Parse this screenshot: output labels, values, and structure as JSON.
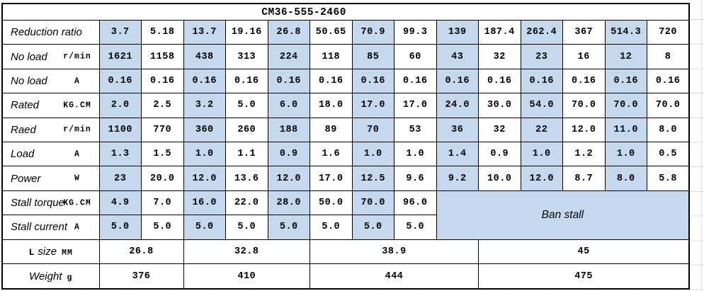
{
  "title": "CM36-555-2460",
  "colors": {
    "cell_blue": "#c5d8ed",
    "gridline": "#dadde1",
    "border": "#000000"
  },
  "table": {
    "rows": [
      {
        "key": "reduction-ratio",
        "label": "Reduction ratio",
        "unit": "",
        "values": [
          "3.7",
          "5.18",
          "13.7",
          "19.16",
          "26.8",
          "50.65",
          "70.9",
          "99.3",
          "139",
          "187.4",
          "262.4",
          "367",
          "514.3",
          "720"
        ]
      },
      {
        "key": "no-load-speed",
        "label": "No load",
        "unit": "r/min",
        "values": [
          "1621",
          "1158",
          "438",
          "313",
          "224",
          "118",
          "85",
          "60",
          "43",
          "32",
          "23",
          "16",
          "12",
          "8"
        ]
      },
      {
        "key": "no-load-current",
        "label": "No load",
        "unit": "A",
        "values": [
          "0.16",
          "0.16",
          "0.16",
          "0.16",
          "0.16",
          "0.16",
          "0.16",
          "0.16",
          "0.16",
          "0.16",
          "0.16",
          "0.16",
          "0.16",
          "0.16"
        ]
      },
      {
        "key": "rated-torque",
        "label": "Rated",
        "unit": "KG.CM",
        "values": [
          "2.0",
          "2.5",
          "3.2",
          "5.0",
          "6.0",
          "18.0",
          "17.0",
          "17.0",
          "24.0",
          "30.0",
          "54.0",
          "70.0",
          "70.0",
          "70.0"
        ]
      },
      {
        "key": "rated-speed",
        "label": "Raed",
        "unit": "r/min",
        "values": [
          "1100",
          "770",
          "360",
          "260",
          "188",
          "89",
          "70",
          "53",
          "36",
          "32",
          "22",
          "12.0",
          "11.0",
          "8.0"
        ]
      },
      {
        "key": "load-current",
        "label": "Load",
        "unit": "A",
        "values": [
          "1.3",
          "1.5",
          "1.0",
          "1.1",
          "0.9",
          "1.6",
          "1.0",
          "1.0",
          "1.4",
          "0.9",
          "1.0",
          "1.2",
          "1.0",
          "0.5"
        ]
      },
      {
        "key": "power",
        "label": "Power",
        "unit": "W",
        "values": [
          "23",
          "20.0",
          "12.0",
          "13.6",
          "12.0",
          "17.0",
          "12.5",
          "9.6",
          "9.2",
          "10.0",
          "12.0",
          "8.7",
          "8.0",
          "5.8"
        ]
      },
      {
        "key": "stall-torque",
        "label": "Stall torque",
        "unit": "KG.CM",
        "values": [
          "4.9",
          "7.0",
          "16.0",
          "22.0",
          "28.0",
          "50.0",
          "70.0",
          "96.0"
        ],
        "note": "Ban stall",
        "note_colspan": 6,
        "note_rowspan": 2
      },
      {
        "key": "stall-current",
        "label": "Stall current",
        "unit": "A",
        "values": [
          "5.0",
          "5.0",
          "5.0",
          "5.0",
          "5.0",
          "5.0",
          "5.0",
          "5.0"
        ]
      },
      {
        "key": "l-size",
        "label_prefix": "L",
        "label": "size",
        "unit": "MM",
        "center_label": true,
        "merged": [
          {
            "value": "26.8",
            "span": 2
          },
          {
            "value": "32.8",
            "span": 3
          },
          {
            "value": "38.9",
            "span": 4
          },
          {
            "value": "45",
            "span": 5
          }
        ]
      },
      {
        "key": "weight",
        "label": "Weight",
        "unit": "g",
        "center_label": true,
        "merged": [
          {
            "value": "376",
            "span": 2
          },
          {
            "value": "410",
            "span": 3
          },
          {
            "value": "444",
            "span": 4
          },
          {
            "value": "475",
            "span": 5
          }
        ]
      }
    ]
  }
}
